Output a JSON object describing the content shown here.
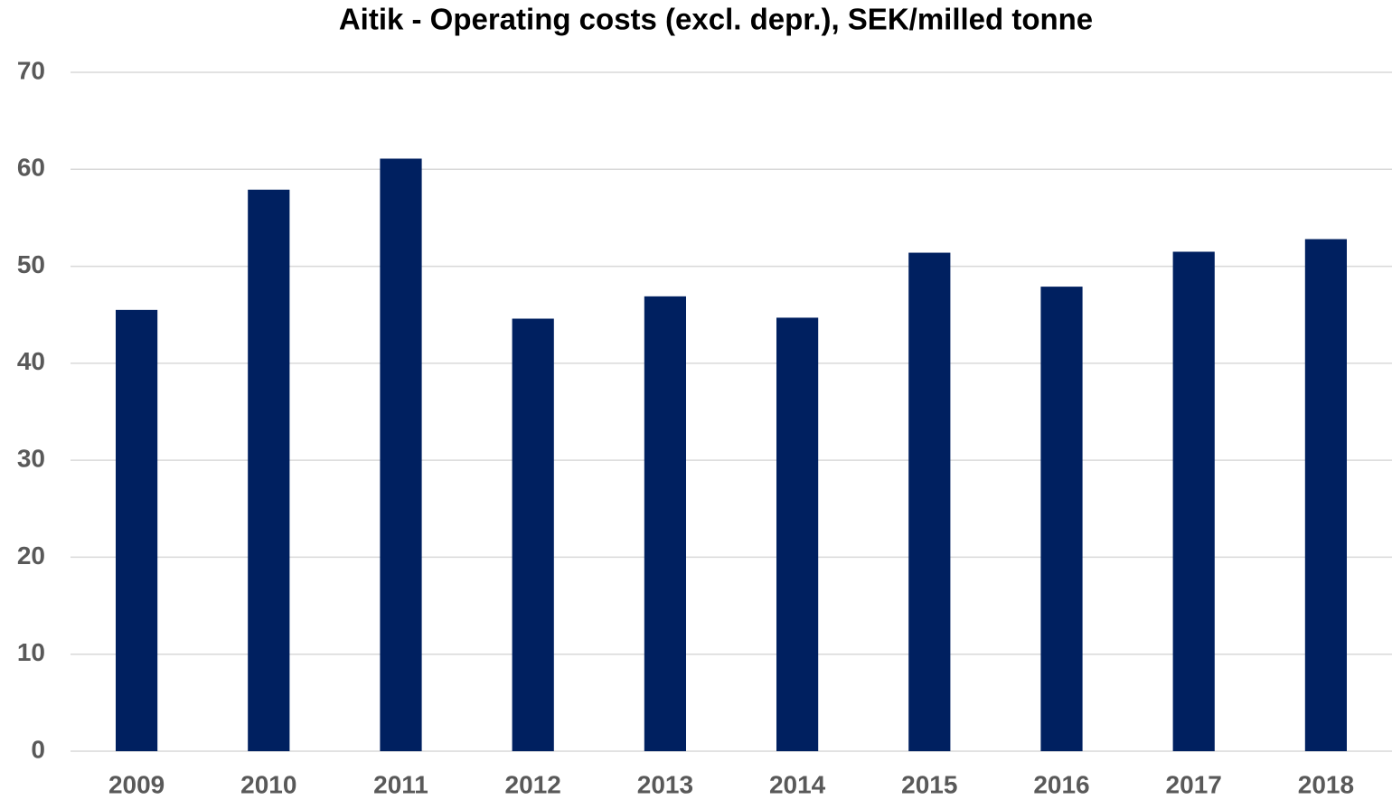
{
  "chart_data": {
    "type": "bar",
    "title": "Aitik - Operating costs (excl. depr.), SEK/milled tonne",
    "categories": [
      "2009",
      "2010",
      "2011",
      "2012",
      "2013",
      "2014",
      "2015",
      "2016",
      "2017",
      "2018"
    ],
    "values": [
      45.5,
      57.9,
      61.1,
      44.6,
      46.9,
      44.7,
      51.4,
      47.9,
      51.5,
      52.8
    ],
    "color": "#002060",
    "ylim": [
      0,
      70
    ],
    "yticks": [
      0,
      10,
      20,
      30,
      40,
      50,
      60,
      70
    ],
    "grid": true
  }
}
